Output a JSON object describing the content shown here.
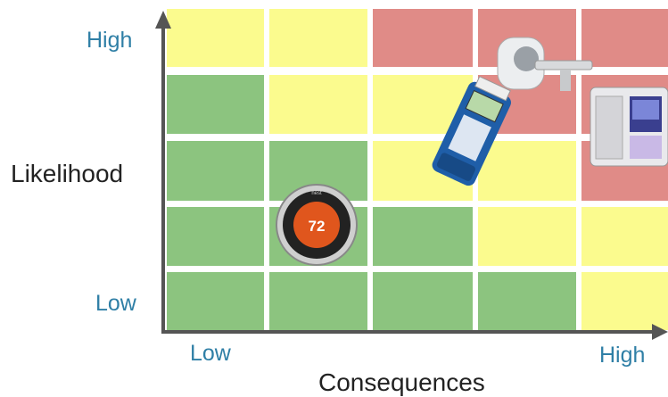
{
  "y_axis": {
    "high": "High",
    "label": "Likelihood",
    "low": "Low"
  },
  "x_axis": {
    "low": "Low",
    "high": "High",
    "label": "Consequences"
  },
  "thermostat": {
    "brand": "nest",
    "display": "72"
  }
}
